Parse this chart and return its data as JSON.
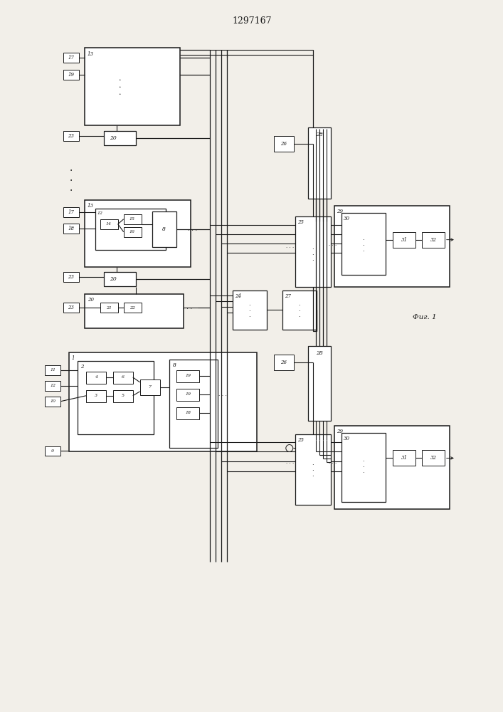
{
  "title": "1297167",
  "fig_label": "Фиг. 1",
  "bg_color": "#f2efe9",
  "line_color": "#1a1a1a",
  "figsize": [
    7.07,
    10.0
  ],
  "dpi": 100
}
